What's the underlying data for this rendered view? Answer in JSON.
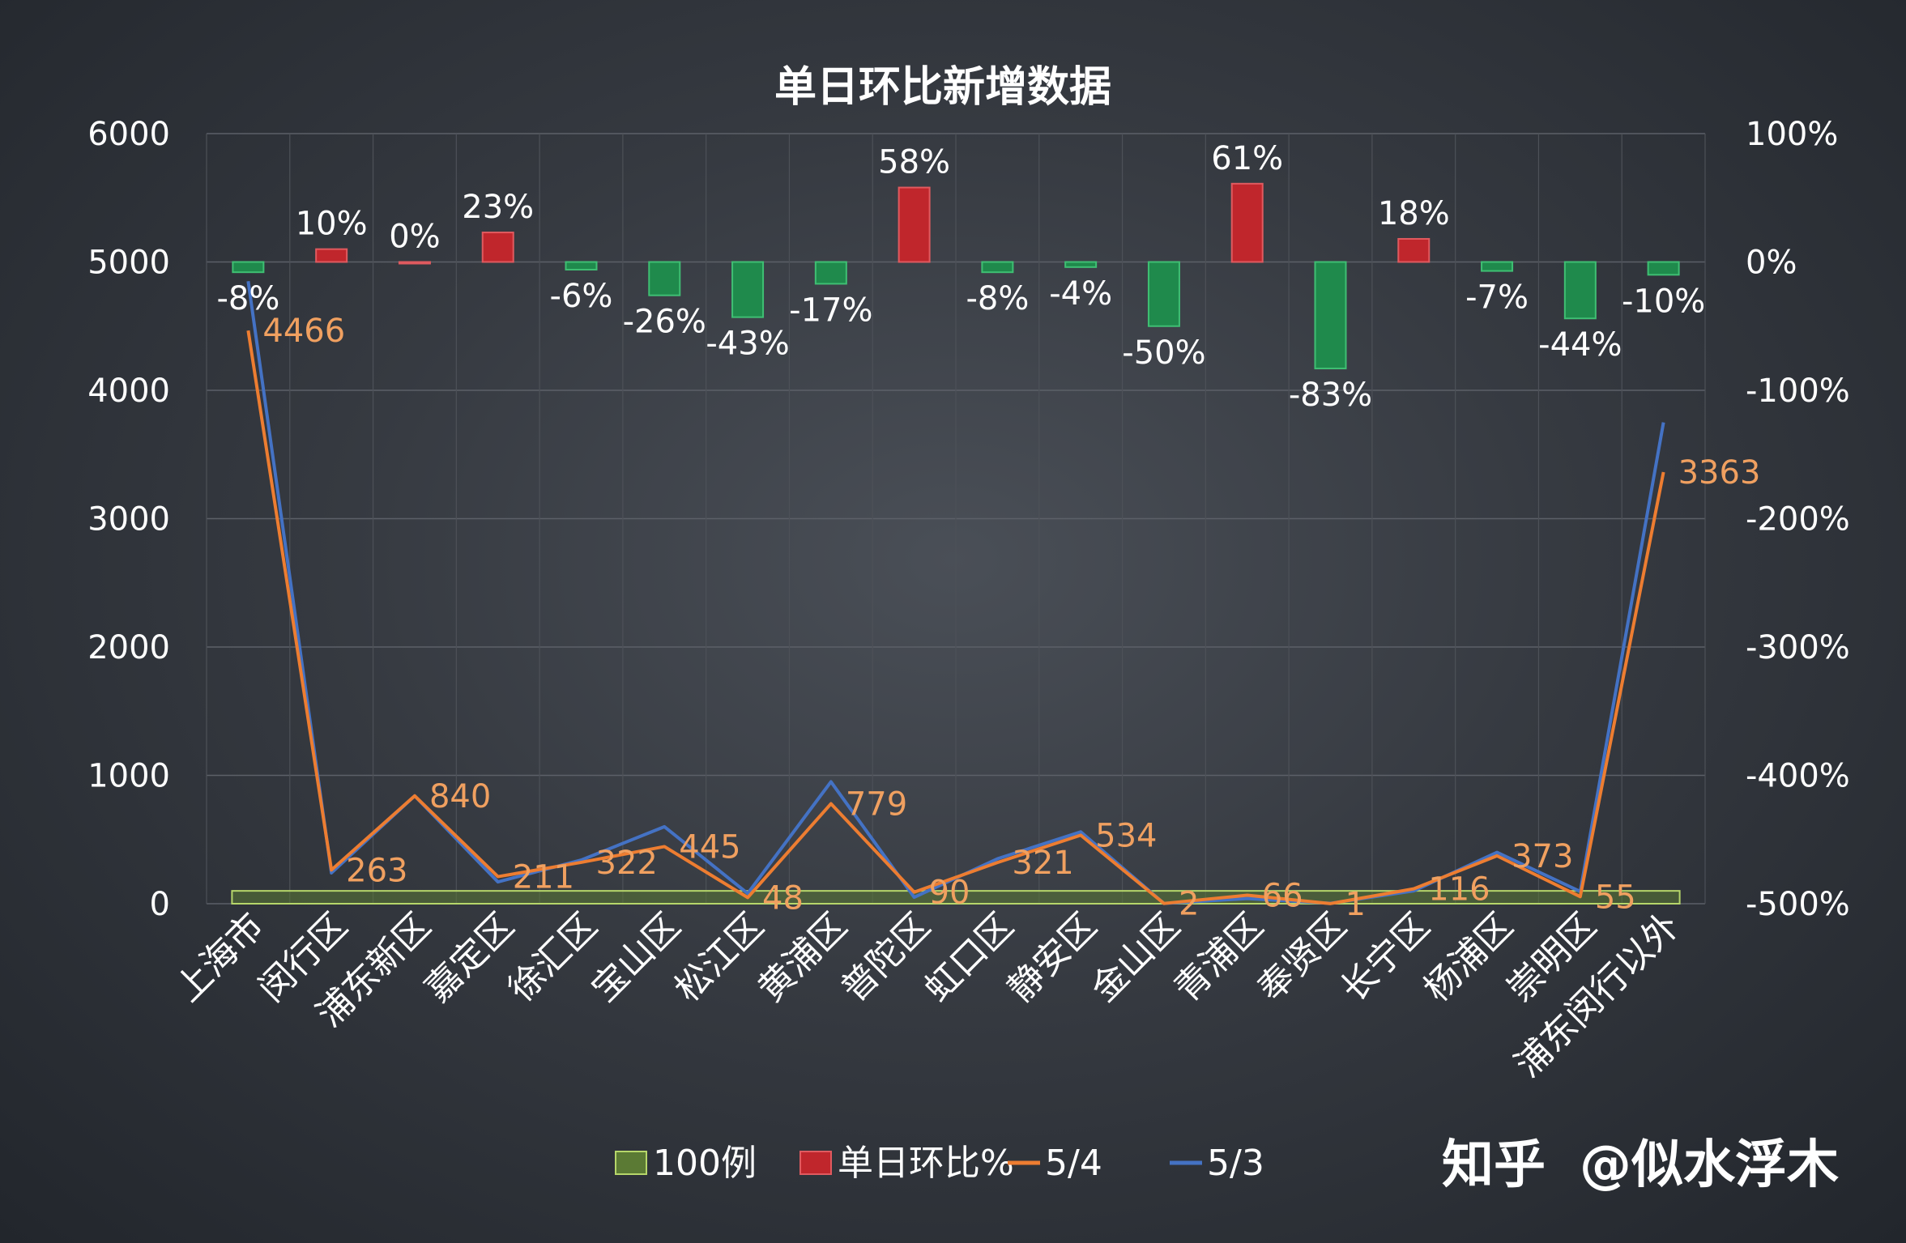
{
  "chart_data": {
    "type": "bar+line",
    "title": "单日环比新增数据",
    "categories": [
      "上海市",
      "闵行区",
      "浦东新区",
      "嘉定区",
      "徐汇区",
      "宝山区",
      "松江区",
      "黄浦区",
      "普陀区",
      "虹口区",
      "静安区",
      "金山区",
      "青浦区",
      "奉贤区",
      "长宁区",
      "杨浦区",
      "崇明区",
      "浦东闵行以外"
    ],
    "y_left": {
      "min": 0,
      "max": 6000,
      "ticks": [
        "0",
        "1000",
        "2000",
        "3000",
        "4000",
        "5000",
        "6000"
      ]
    },
    "y_right": {
      "min": -500,
      "max": 100,
      "ticks": [
        "-500%",
        "-400%",
        "-300%",
        "-200%",
        "-100%",
        "0%",
        "100%"
      ]
    },
    "grid": true,
    "legend_position": "bottom",
    "series": [
      {
        "name": "100例",
        "type": "bar",
        "axis": "left",
        "color": "#5b7a34",
        "values": [
          100,
          100,
          100,
          100,
          100,
          100,
          100,
          100,
          100,
          100,
          100,
          100,
          100,
          100,
          100,
          100,
          100,
          100
        ]
      },
      {
        "name": "单日环比%",
        "type": "bar",
        "axis": "right",
        "values": [
          -8,
          10,
          0,
          23,
          -6,
          -26,
          -43,
          -17,
          58,
          -8,
          -4,
          -50,
          61,
          -83,
          18,
          -7,
          -44,
          -10
        ],
        "labels": [
          "-8%",
          "10%",
          "0%",
          "23%",
          "-6%",
          "-26%",
          "-43%",
          "-17%",
          "58%",
          "-8%",
          "-4%",
          "-50%",
          "61%",
          "-83%",
          "18%",
          "-7%",
          "-44%",
          "-10%"
        ],
        "color_positive": "#c0262c",
        "color_negative": "#1f8a4c"
      },
      {
        "name": "5/4",
        "type": "line",
        "axis": "left",
        "color": "#ed7d31",
        "values": [
          4466,
          263,
          840,
          211,
          322,
          445,
          48,
          779,
          90,
          321,
          534,
          2,
          66,
          1,
          116,
          373,
          55,
          3363
        ],
        "labels": [
          "4466",
          "263",
          "840",
          "211",
          "322",
          "445",
          "48",
          "779",
          "90",
          "321",
          "534",
          "2",
          "66",
          "1",
          "116",
          "373",
          "55",
          "3363"
        ]
      },
      {
        "name": "5/3",
        "type": "line",
        "axis": "left",
        "color": "#4472c4",
        "values": [
          4850,
          240,
          840,
          170,
          340,
          600,
          80,
          950,
          50,
          350,
          560,
          2,
          40,
          3,
          100,
          400,
          95,
          3750
        ]
      }
    ]
  },
  "watermark": {
    "brand": "知乎",
    "author": "@似水浮木"
  }
}
